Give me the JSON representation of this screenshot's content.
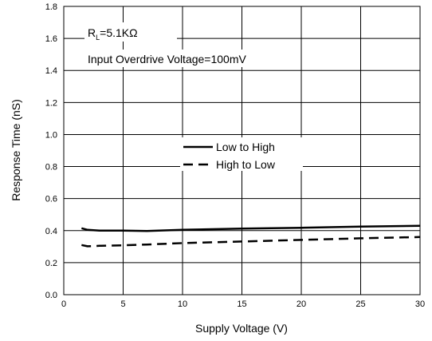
{
  "chart_data": {
    "type": "line",
    "xlabel": "Supply Voltage (V)",
    "ylabel": "Response Time (nS)",
    "xlim": [
      0,
      30
    ],
    "ylim": [
      0.0,
      1.8
    ],
    "xticks": [
      0,
      5,
      10,
      15,
      20,
      25,
      30
    ],
    "xtick_labels": [
      "0",
      "5",
      "10",
      "15",
      "20",
      "25",
      "30"
    ],
    "yticks": [
      0.0,
      0.2,
      0.4,
      0.6,
      0.8,
      1.0,
      1.2,
      1.4,
      1.6,
      1.8
    ],
    "ytick_labels": [
      "0.0",
      "0.2",
      "0.4",
      "0.6",
      "0.8",
      "1.0",
      "1.2",
      "1.4",
      "1.6",
      "1.8"
    ],
    "grid": true,
    "annotations": {
      "rl_main": "R",
      "rl_sub": "L",
      "rl_value": "=5.1KΩ",
      "overdrive": "Input Overdrive Voltage=100mV"
    },
    "legend_position": "center",
    "series": [
      {
        "name": "Low to High",
        "style": "solid",
        "x": [
          1.5,
          2,
          3,
          5,
          7,
          10,
          15,
          20,
          25,
          30
        ],
        "y": [
          0.415,
          0.405,
          0.4,
          0.4,
          0.398,
          0.405,
          0.413,
          0.418,
          0.425,
          0.43
        ]
      },
      {
        "name": "High to Low",
        "style": "dashed",
        "x": [
          1.5,
          2,
          3,
          5,
          7,
          10,
          15,
          20,
          25,
          30
        ],
        "y": [
          0.31,
          0.302,
          0.305,
          0.308,
          0.313,
          0.322,
          0.332,
          0.342,
          0.352,
          0.36
        ]
      }
    ]
  }
}
